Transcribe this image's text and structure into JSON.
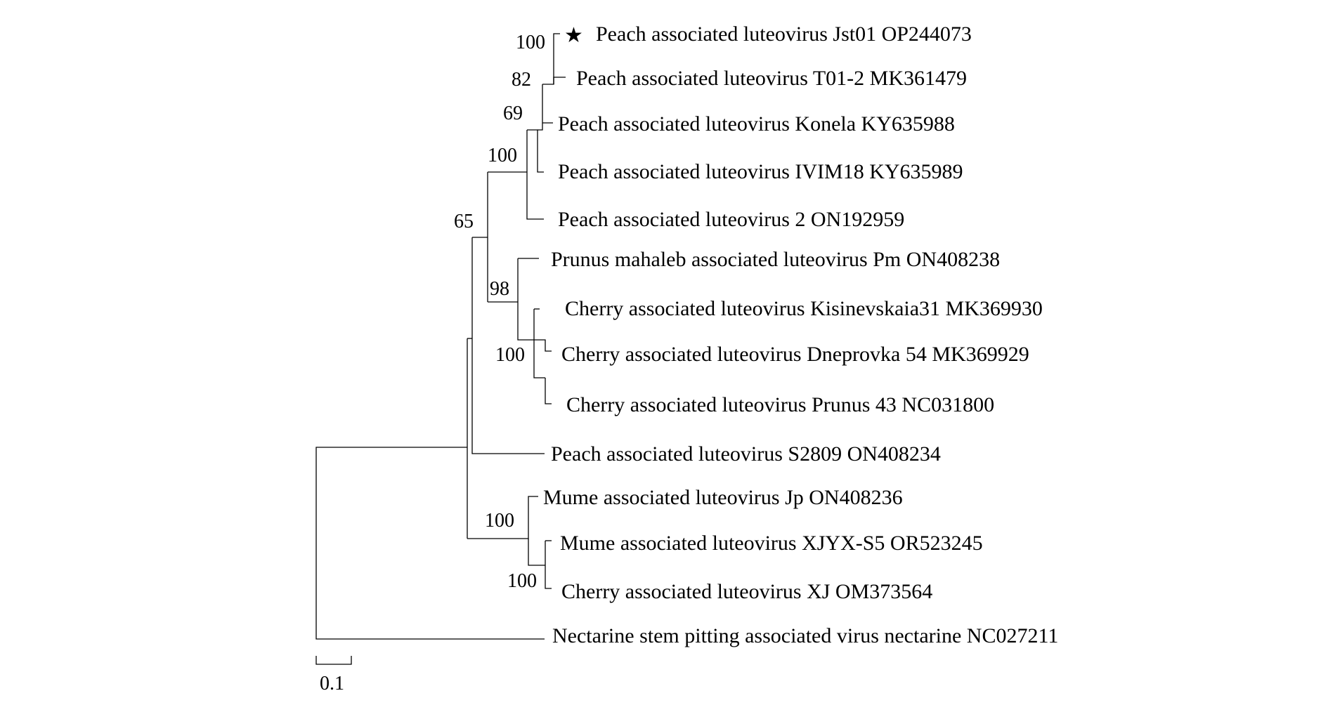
{
  "tree": {
    "marker_icon": "star-icon",
    "marker_glyph": "★",
    "taxa": [
      {
        "id": "t1",
        "label": "Peach associated luteovirus Jst01 OP244073",
        "marked": true
      },
      {
        "id": "t2",
        "label": "Peach associated luteovirus T01-2 MK361479"
      },
      {
        "id": "t3",
        "label": "Peach associated luteovirus Konela KY635988"
      },
      {
        "id": "t4",
        "label": "Peach associated luteovirus IVIM18 KY635989"
      },
      {
        "id": "t5",
        "label": "Peach associated luteovirus 2 ON192959"
      },
      {
        "id": "t6",
        "label": "Prunus mahaleb associated luteovirus Pm ON408238"
      },
      {
        "id": "t7",
        "label": "Cherry associated luteovirus Kisinevskaia31 MK369930"
      },
      {
        "id": "t8",
        "label": "Cherry associated luteovirus Dneprovka 54 MK369929"
      },
      {
        "id": "t9",
        "label": "Cherry associated luteovirus Prunus 43 NC031800"
      },
      {
        "id": "t10",
        "label": "Peach associated luteovirus S2809 ON408234"
      },
      {
        "id": "t11",
        "label": "Mume associated luteovirus Jp ON408236"
      },
      {
        "id": "t12",
        "label": "Mume associated luteovirus XJYX-S5 OR523245"
      },
      {
        "id": "t13",
        "label": "Cherry associated luteovirus XJ OM373564"
      },
      {
        "id": "t14",
        "label": "Nectarine stem pitting associated virus nectarine NC027211"
      }
    ],
    "support_values": [
      {
        "node": "t1-t2",
        "value": "100"
      },
      {
        "node": "t1-t3",
        "value": "82"
      },
      {
        "node": "t1-t4",
        "value": "69"
      },
      {
        "node": "t1-t5",
        "value": "100"
      },
      {
        "node": "t6-t9",
        "value": "98"
      },
      {
        "node": "t7-t9",
        "value": "100"
      },
      {
        "node": "t1-t9",
        "value": "65"
      },
      {
        "node": "t11-t13",
        "value": "100"
      },
      {
        "node": "t12-t13",
        "value": "100"
      }
    ],
    "scale_bar": {
      "label": "0.1",
      "length": 0.1
    }
  }
}
